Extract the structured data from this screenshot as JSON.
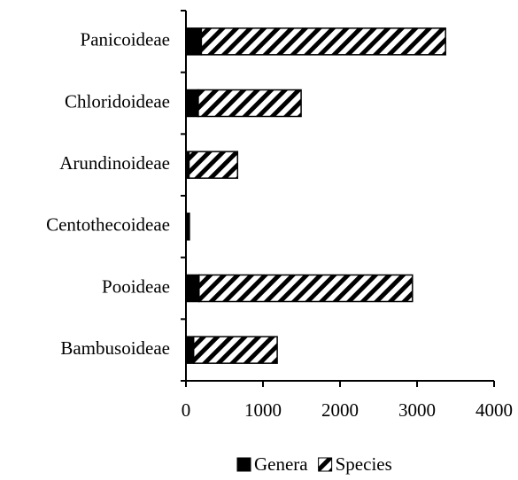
{
  "chart_data": {
    "type": "bar",
    "orientation": "horizontal",
    "stacked": true,
    "categories": [
      "Panicoideae",
      "Chloridoideae",
      "Arundinoideae",
      "Centothecoideae",
      "Pooideae",
      "Bambusoideae"
    ],
    "series": [
      {
        "name": "Genera",
        "color": "#000000",
        "values": [
          200,
          160,
          40,
          45,
          170,
          100
        ]
      },
      {
        "name": "Species",
        "color": "hatch",
        "values": [
          3170,
          1335,
          630,
          0,
          2770,
          1085
        ]
      }
    ],
    "xlim": [
      0,
      4000
    ],
    "xticks": [
      0,
      1000,
      2000,
      3000,
      4000
    ],
    "legend": "bottom"
  }
}
